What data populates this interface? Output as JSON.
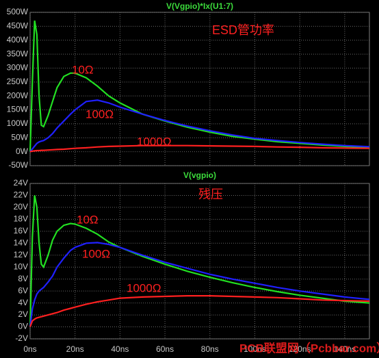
{
  "chart_data": [
    {
      "type": "line",
      "title": "V(Vgpio)*Ix(U1:7)",
      "annotation": "ESD管功率",
      "x": [
        0,
        1,
        2,
        3,
        4,
        5,
        6,
        8,
        10,
        12,
        15,
        18,
        20,
        25,
        30,
        35,
        40,
        50,
        60,
        70,
        80,
        90,
        100,
        110,
        120,
        130,
        140,
        151
      ],
      "xlim": [
        0,
        151
      ],
      "ylim": [
        -50,
        500
      ],
      "yticks": [
        {
          "value": -50,
          "label": "-50W"
        },
        {
          "value": 0,
          "label": "0W"
        },
        {
          "value": 50,
          "label": "50W"
        },
        {
          "value": 100,
          "label": "100W"
        },
        {
          "value": 150,
          "label": "150W"
        },
        {
          "value": 200,
          "label": "200W"
        },
        {
          "value": 250,
          "label": "250W"
        },
        {
          "value": 300,
          "label": "300W"
        },
        {
          "value": 350,
          "label": "350W"
        },
        {
          "value": 400,
          "label": "400W"
        },
        {
          "value": 450,
          "label": "450W"
        },
        {
          "value": 500,
          "label": "500W"
        }
      ],
      "grid": true,
      "series": [
        {
          "name": "10Ω",
          "color": "#22e022",
          "values": [
            0,
            250,
            470,
            420,
            200,
            95,
            90,
            130,
            180,
            230,
            270,
            282,
            282,
            265,
            235,
            200,
            175,
            135,
            110,
            88,
            70,
            55,
            45,
            36,
            30,
            24,
            19,
            15
          ]
        },
        {
          "name": "100Ω",
          "color": "#2020ff",
          "values": [
            0,
            10,
            20,
            30,
            35,
            38,
            40,
            50,
            65,
            85,
            110,
            135,
            150,
            180,
            185,
            175,
            160,
            135,
            112,
            92,
            75,
            60,
            48,
            40,
            33,
            27,
            22,
            18
          ]
        },
        {
          "name": "1000Ω",
          "color": "#ff2020",
          "values": [
            0,
            2,
            3,
            4,
            4,
            5,
            5,
            6,
            7,
            8,
            9,
            11,
            12,
            14,
            17,
            19,
            20,
            22,
            22,
            22,
            21,
            20,
            19,
            17,
            16,
            14,
            13,
            12
          ]
        }
      ]
    },
    {
      "type": "line",
      "title": "V(vgpio)",
      "annotation": "残压",
      "watermark": "PCB联盟网（Pcbbar.com）",
      "x": [
        0,
        1,
        2,
        3,
        4,
        5,
        6,
        8,
        10,
        12,
        15,
        18,
        20,
        25,
        30,
        35,
        40,
        50,
        60,
        70,
        80,
        90,
        100,
        110,
        120,
        130,
        140,
        151
      ],
      "xlim": [
        0,
        151
      ],
      "xticks": [
        {
          "value": 0,
          "label": "0ns"
        },
        {
          "value": 20,
          "label": "20ns"
        },
        {
          "value": 40,
          "label": "40ns"
        },
        {
          "value": 60,
          "label": "60ns"
        },
        {
          "value": 80,
          "label": "80ns"
        },
        {
          "value": 100,
          "label": "100ns"
        },
        {
          "value": 120,
          "label": "120ns"
        },
        {
          "value": 140,
          "label": "140ns"
        }
      ],
      "ylim": [
        -2,
        24
      ],
      "yticks": [
        {
          "value": -2,
          "label": "-2V"
        },
        {
          "value": 0,
          "label": "0V"
        },
        {
          "value": 2,
          "label": "2V"
        },
        {
          "value": 4,
          "label": "4V"
        },
        {
          "value": 6,
          "label": "6V"
        },
        {
          "value": 8,
          "label": "8V"
        },
        {
          "value": 10,
          "label": "10V"
        },
        {
          "value": 12,
          "label": "12V"
        },
        {
          "value": 14,
          "label": "14V"
        },
        {
          "value": 16,
          "label": "16V"
        },
        {
          "value": 18,
          "label": "18V"
        },
        {
          "value": 20,
          "label": "20V"
        },
        {
          "value": 22,
          "label": "22V"
        },
        {
          "value": 24,
          "label": "24V"
        }
      ],
      "grid": true,
      "series": [
        {
          "name": "10Ω",
          "color": "#22e022",
          "values": [
            0,
            15,
            22,
            20,
            14,
            10.5,
            10,
            12,
            14.5,
            16,
            17,
            17.3,
            17.2,
            16.5,
            15.5,
            14.2,
            13.3,
            11.8,
            10.5,
            9.3,
            8.3,
            7.4,
            6.6,
            5.9,
            5.3,
            4.8,
            4.3,
            4
          ]
        },
        {
          "name": "100Ω",
          "color": "#2020ff",
          "values": [
            0,
            3,
            4.5,
            5.5,
            6,
            6.3,
            6.6,
            7.5,
            8.5,
            10,
            11.5,
            12.8,
            13.3,
            14,
            14.1,
            13.8,
            13.3,
            12,
            10.8,
            9.8,
            8.8,
            8,
            7.3,
            6.6,
            6,
            5.5,
            5,
            4.6
          ]
        },
        {
          "name": "1000Ω",
          "color": "#ff2020",
          "values": [
            0,
            1,
            1.3,
            1.5,
            1.6,
            1.7,
            1.8,
            2,
            2.2,
            2.4,
            2.8,
            3.1,
            3.3,
            3.8,
            4.2,
            4.5,
            4.8,
            5,
            5.1,
            5.2,
            5.2,
            5.1,
            5,
            4.9,
            4.7,
            4.5,
            4.4,
            4.3
          ]
        }
      ]
    }
  ]
}
